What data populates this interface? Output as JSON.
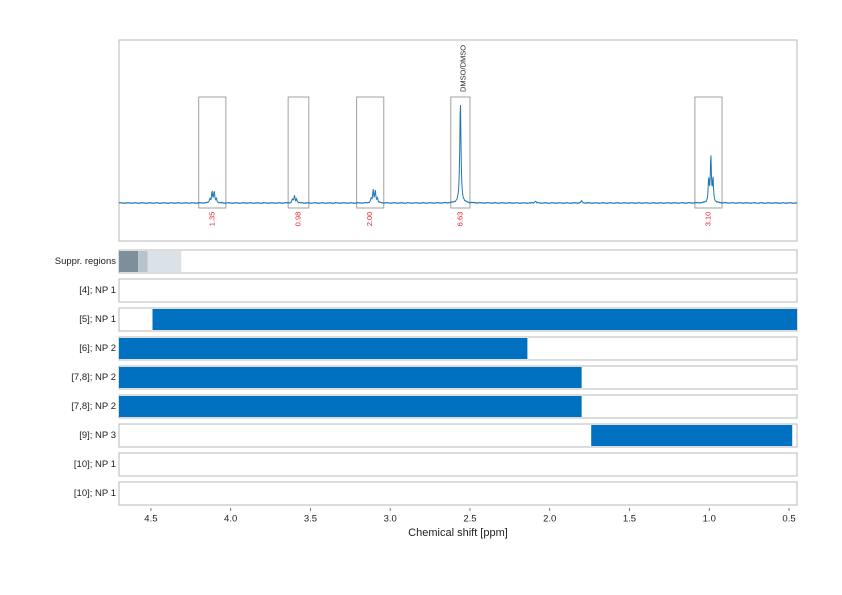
{
  "chart_data": {
    "type": "line",
    "x_axis": {
      "label": "Chemical shift [ppm]",
      "range": [
        4.7,
        0.45
      ],
      "reversed": true,
      "ticks": [
        4.5,
        4.0,
        3.5,
        3.0,
        2.5,
        2.0,
        1.5,
        1.0,
        0.5
      ],
      "tick_labels": [
        "4.5",
        "4.0",
        "3.5",
        "3.0",
        "2.5",
        "2.0",
        "1.5",
        "1.0",
        "0.5"
      ]
    },
    "grid": true,
    "spectrum": {
      "color": "#1f77b4",
      "peaks": [
        {
          "center": 4.11,
          "height": 0.11,
          "multiplicity": "quartet"
        },
        {
          "center": 3.6,
          "height": 0.07,
          "multiplicity": "triplet"
        },
        {
          "center": 3.1,
          "height": 0.12,
          "multiplicity": "quartet"
        },
        {
          "center": 2.56,
          "height": 1.0,
          "multiplicity": "singlet"
        },
        {
          "center": 2.09,
          "height": 0.02,
          "multiplicity": "singlet"
        },
        {
          "center": 1.8,
          "height": 0.02,
          "multiplicity": "singlet"
        },
        {
          "center": 0.99,
          "height": 0.45,
          "multiplicity": "triplet"
        }
      ]
    },
    "integrals": [
      {
        "from": 4.2,
        "to": 4.03,
        "value": "1.35"
      },
      {
        "from": 3.64,
        "to": 3.51,
        "value": "0.98"
      },
      {
        "from": 3.21,
        "to": 3.04,
        "value": "2.00"
      },
      {
        "from": 2.62,
        "to": 2.5,
        "value": "6.63"
      },
      {
        "from": 1.09,
        "to": 0.92,
        "value": "3.10"
      }
    ],
    "annotations": [
      {
        "x": 2.56,
        "text": "DMSO/DMSO"
      }
    ],
    "suppression_regions": {
      "label": "Suppr. regions",
      "segments": [
        {
          "from": 4.7,
          "to": 4.58,
          "color": "#7d8f9b"
        },
        {
          "from": 4.58,
          "to": 4.52,
          "color": "#b7c2ca"
        },
        {
          "from": 4.52,
          "to": 4.31,
          "color": "#dbe2e7"
        }
      ]
    },
    "range_rows": [
      {
        "label": "[4]; NP 1",
        "from": null,
        "to": null
      },
      {
        "label": "[5]; NP 1",
        "from": 4.49,
        "to": 0.45
      },
      {
        "label": "[6]; NP 2",
        "from": 4.7,
        "to": 2.14
      },
      {
        "label": "[7,8]; NP 2",
        "from": 4.7,
        "to": 1.8
      },
      {
        "label": "[7,8]; NP 2",
        "from": 4.7,
        "to": 1.8
      },
      {
        "label": "[9]; NP 3",
        "from": 1.74,
        "to": 0.48
      },
      {
        "label": "[10]; NP 1",
        "from": null,
        "to": null
      },
      {
        "label": "[10]; NP 1",
        "from": null,
        "to": null
      }
    ],
    "bar_color": "#0070c0"
  }
}
